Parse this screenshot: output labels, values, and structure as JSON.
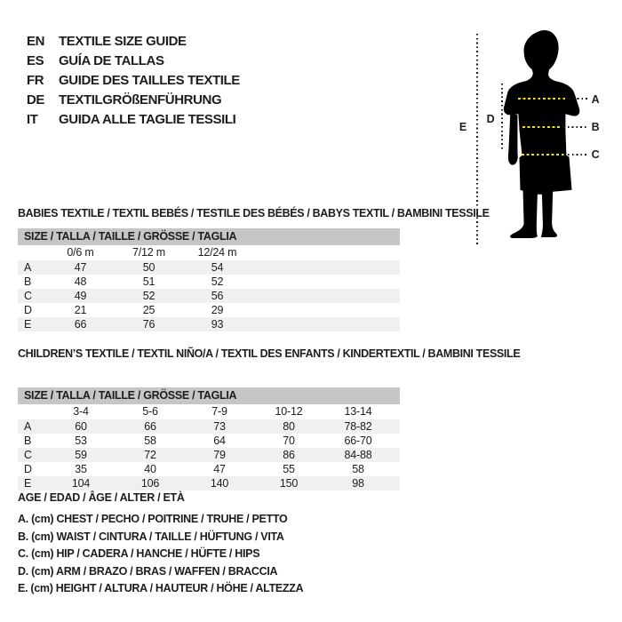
{
  "languages": [
    {
      "code": "EN",
      "label": "TEXTILE SIZE GUIDE"
    },
    {
      "code": "ES",
      "label": "GUÍA DE TALLAS"
    },
    {
      "code": "FR",
      "label": "GUIDE DES TAILLES TEXTILE"
    },
    {
      "code": "DE",
      "label": "TEXTILGRÖßENFÜHRUNG"
    },
    {
      "code": "IT",
      "label": "GUIDA ALLE TAGLIE TESSILI"
    }
  ],
  "figure": {
    "labels": {
      "a": "A",
      "b": "B",
      "c": "C",
      "d": "D",
      "e": "E"
    },
    "silhouette_color": "#000000",
    "measure_line_yellow": "#f2e205",
    "measure_line_black": "#141414"
  },
  "babies": {
    "title": "BABIES TEXTILE / TEXTIL BEBÉS / TESTILE DES BÉBÉS / BABYS TEXTIL / BAMBINI TESSILE",
    "size_header": "SIZE / TALLA / TAILLE / GRÖSSE / TAGLIA",
    "columns": [
      "0/6 m",
      "7/12 m",
      "12/24 m"
    ],
    "rows": [
      {
        "label": "A",
        "values": [
          "47",
          "50",
          "54"
        ]
      },
      {
        "label": "B",
        "values": [
          "48",
          "51",
          "52"
        ]
      },
      {
        "label": "C",
        "values": [
          "49",
          "52",
          "56"
        ]
      },
      {
        "label": "D",
        "values": [
          "21",
          "25",
          "29"
        ]
      },
      {
        "label": "E",
        "values": [
          "66",
          "76",
          "93"
        ]
      }
    ]
  },
  "children": {
    "title": "CHILDREN’S TEXTILE / TEXTIL NIÑO/A / TEXTIL DES ENFANTS / KINDERTEXTIL / BAMBINI TESSILE",
    "size_header": "SIZE / TALLA / TAILLE / GRÖSSE / TAGLIA",
    "columns": [
      "3-4",
      "5-6",
      "7-9",
      "10-12",
      "13-14"
    ],
    "rows": [
      {
        "label": "A",
        "values": [
          "60",
          "66",
          "73",
          "80",
          "78-82"
        ]
      },
      {
        "label": "B",
        "values": [
          "53",
          "58",
          "64",
          "70",
          "66-70"
        ]
      },
      {
        "label": "C",
        "values": [
          "59",
          "72",
          "79",
          "86",
          "84-88"
        ]
      },
      {
        "label": "D",
        "values": [
          "35",
          "40",
          "47",
          "55",
          "58"
        ]
      },
      {
        "label": "E",
        "values": [
          "104",
          "106",
          "140",
          "150",
          "98"
        ]
      }
    ]
  },
  "legend": {
    "age": "AGE / EDAD / ÂGE / ALTER / ETÀ",
    "items": [
      "A. (cm) CHEST / PECHO / POITRINE / TRUHE / PETTO",
      "B. (cm) WAIST / CINTURA / TAILLE / HÜFTUNG / VITA",
      "C. (cm) HIP / CADERA / HANCHE / HÜFTE / HIPS",
      "D. (cm) ARM / BRAZO / BRAS / WAFFEN / BRACCIA",
      "E. (cm) HEIGHT / ALTURA / HAUTEUR / HÖHE / ALTEZZA"
    ]
  },
  "colors": {
    "header_bar": "#c6c6c6",
    "row_stripe": "#f0f0f0",
    "text": "#1d1d1b"
  }
}
